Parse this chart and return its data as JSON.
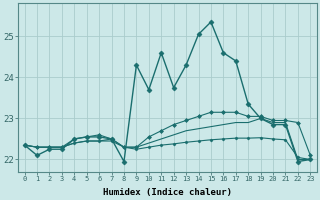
{
  "xlabel": "Humidex (Indice chaleur)",
  "bg_color": "#cce8e8",
  "grid_color": "#aacccc",
  "line_color": "#1a6e6e",
  "xlim": [
    -0.5,
    23.5
  ],
  "ylim": [
    21.7,
    25.8
  ],
  "yticks": [
    22,
    23,
    24,
    25
  ],
  "xticks": [
    0,
    1,
    2,
    3,
    4,
    5,
    6,
    7,
    8,
    9,
    10,
    11,
    12,
    13,
    14,
    15,
    16,
    17,
    18,
    19,
    20,
    21,
    22,
    23
  ],
  "series1": {
    "x": [
      0,
      1,
      2,
      3,
      4,
      5,
      6,
      7,
      8,
      9,
      10,
      11,
      12,
      13,
      14,
      15,
      16,
      17,
      18,
      19,
      20,
      21,
      22,
      23
    ],
    "y": [
      22.35,
      22.1,
      22.25,
      22.25,
      22.5,
      22.55,
      22.55,
      22.5,
      21.95,
      24.3,
      23.7,
      24.6,
      23.75,
      24.3,
      25.05,
      25.35,
      24.6,
      24.4,
      23.35,
      23.0,
      22.85,
      22.85,
      21.95,
      22.0
    ],
    "marker": "D",
    "markersize": 2.5,
    "linewidth": 1.0
  },
  "series2": {
    "x": [
      0,
      1,
      2,
      3,
      4,
      5,
      6,
      7,
      8,
      9,
      10,
      11,
      12,
      13,
      14,
      15,
      16,
      17,
      18,
      19,
      20,
      21,
      22,
      23
    ],
    "y": [
      22.35,
      22.3,
      22.3,
      22.3,
      22.5,
      22.55,
      22.6,
      22.5,
      22.3,
      22.3,
      22.55,
      22.7,
      22.85,
      22.95,
      23.05,
      23.15,
      23.15,
      23.15,
      23.05,
      23.05,
      22.95,
      22.95,
      22.9,
      22.1
    ],
    "marker": "D",
    "markersize": 2.0,
    "linewidth": 0.8,
    "linestyle": "-"
  },
  "series3": {
    "x": [
      0,
      1,
      2,
      3,
      4,
      5,
      6,
      7,
      8,
      9,
      10,
      11,
      12,
      13,
      14,
      15,
      16,
      17,
      18,
      19,
      20,
      21,
      22,
      23
    ],
    "y": [
      22.35,
      22.3,
      22.3,
      22.3,
      22.4,
      22.45,
      22.45,
      22.5,
      22.3,
      22.3,
      22.4,
      22.5,
      22.6,
      22.7,
      22.75,
      22.8,
      22.85,
      22.9,
      22.9,
      23.0,
      22.9,
      22.9,
      22.0,
      22.0
    ],
    "marker": null,
    "markersize": 0,
    "linewidth": 0.8,
    "linestyle": "-"
  },
  "series4": {
    "x": [
      0,
      1,
      2,
      3,
      4,
      5,
      6,
      7,
      8,
      9,
      10,
      11,
      12,
      13,
      14,
      15,
      16,
      17,
      18,
      19,
      20,
      21,
      22,
      23
    ],
    "y": [
      22.35,
      22.3,
      22.3,
      22.3,
      22.4,
      22.45,
      22.45,
      22.45,
      22.3,
      22.25,
      22.3,
      22.35,
      22.38,
      22.42,
      22.45,
      22.48,
      22.5,
      22.52,
      22.52,
      22.53,
      22.5,
      22.48,
      22.05,
      22.0
    ],
    "marker": "D",
    "markersize": 1.5,
    "linewidth": 0.8,
    "linestyle": "-"
  }
}
